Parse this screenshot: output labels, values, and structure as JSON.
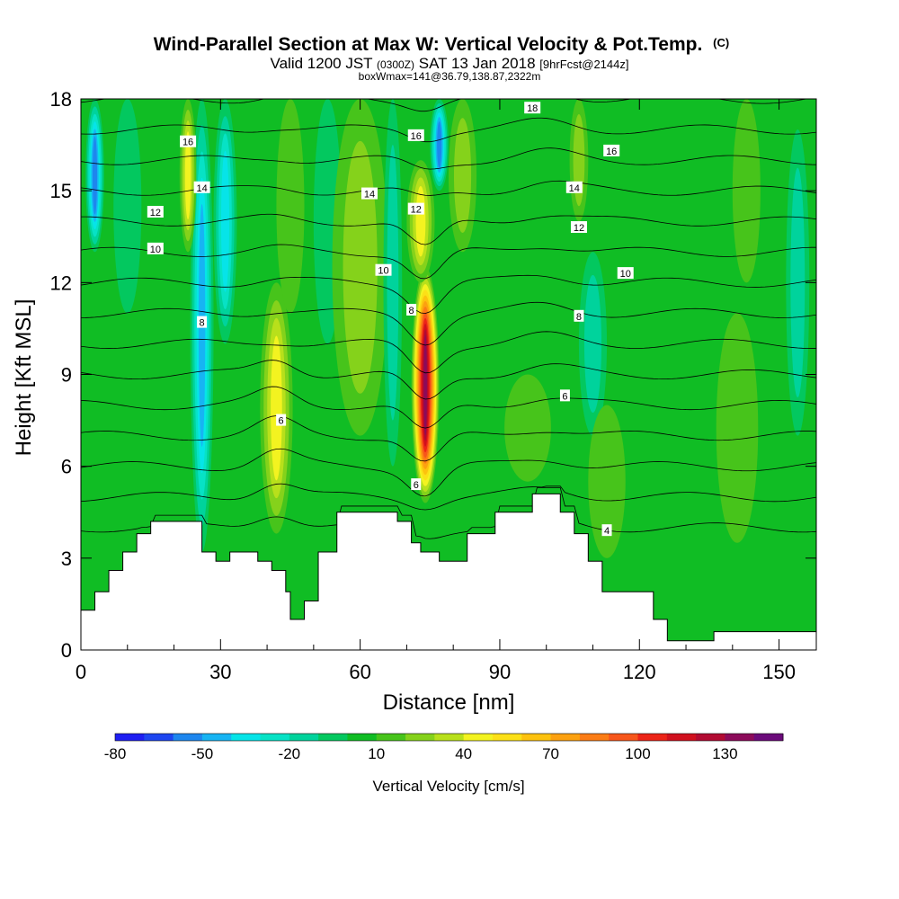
{
  "chart_data": {
    "type": "heatmap",
    "title": "Wind-Parallel Section at Max W: Vertical Velocity & Pot.Temp.",
    "title_mark": "(C)",
    "subtitle_parts": [
      "Valid 1200 JST",
      "(0300Z)",
      "SAT 13 Jan 2018",
      "[9hrFcst@2144z]"
    ],
    "subtitle2": "boxWmax=141@36.79,138.87,2322m",
    "xlabel": "Distance [nm]",
    "ylabel": "Height [Kft MSL]",
    "xlim": [
      0,
      158
    ],
    "ylim": [
      0,
      18
    ],
    "xticks": [
      0,
      30,
      60,
      90,
      120,
      150
    ],
    "yticks": [
      0,
      3,
      6,
      9,
      12,
      15,
      18
    ],
    "colorbar": {
      "label": "Vertical Velocity [cm/s]",
      "tick_labels": [
        "-80",
        "-50",
        "-20",
        "10",
        "40",
        "70",
        "100",
        "130"
      ],
      "bins": [
        -80,
        -70,
        -60,
        -50,
        -40,
        -30,
        -20,
        -10,
        0,
        10,
        20,
        30,
        40,
        50,
        60,
        70,
        80,
        90,
        100,
        110,
        120,
        130,
        140,
        150
      ],
      "colors": [
        "#1f1ff2",
        "#1e46f0",
        "#1e86ee",
        "#17b4f3",
        "#06e4e8",
        "#07e2c5",
        "#00d39c",
        "#03c85f",
        "#10bd24",
        "#47c41b",
        "#85d21b",
        "#b8e01b",
        "#f3f320",
        "#fce017",
        "#fdc20e",
        "#fca110",
        "#fb7c15",
        "#f7561b",
        "#ec2418",
        "#d0101e",
        "#b20a32",
        "#8c0a5a",
        "#6b0a7a"
      ]
    },
    "velocity_features": [
      {
        "x": 3,
        "half_width": 2.0,
        "zmin": 13,
        "zmax": 18,
        "w": -55
      },
      {
        "x": 10,
        "half_width": 3.0,
        "zmin": 11,
        "zmax": 18,
        "w": -10
      },
      {
        "x": 26,
        "half_width": 2.5,
        "zmin": 3.2,
        "zmax": 18,
        "w": -45
      },
      {
        "x": 31,
        "half_width": 2.5,
        "zmin": 10,
        "zmax": 18,
        "w": -40
      },
      {
        "x": 23,
        "half_width": 1.8,
        "zmin": 13,
        "zmax": 18,
        "w": 45
      },
      {
        "x": 42,
        "half_width": 3.5,
        "zmin": 3.8,
        "zmax": 12,
        "w": 50
      },
      {
        "x": 45,
        "half_width": 3.0,
        "zmin": 11,
        "zmax": 18,
        "w": 22
      },
      {
        "x": 53,
        "half_width": 3.0,
        "zmin": 10,
        "zmax": 18,
        "w": -12
      },
      {
        "x": 60,
        "half_width": 6.0,
        "zmin": 7,
        "zmax": 18,
        "w": 25
      },
      {
        "x": 67,
        "half_width": 2.0,
        "zmin": 6,
        "zmax": 18,
        "w": -18
      },
      {
        "x": 74,
        "half_width": 3.0,
        "zmin": 4.8,
        "zmax": 12.5,
        "w": 135
      },
      {
        "x": 73,
        "half_width": 3.0,
        "zmin": 12,
        "zmax": 16,
        "w": 45
      },
      {
        "x": 77,
        "half_width": 2.0,
        "zmin": 15,
        "zmax": 18,
        "w": -55
      },
      {
        "x": 82,
        "half_width": 3.0,
        "zmin": 13,
        "zmax": 18,
        "w": 28
      },
      {
        "x": 96,
        "half_width": 5.0,
        "zmin": 5.5,
        "zmax": 9,
        "w": 20
      },
      {
        "x": 110,
        "half_width": 3.0,
        "zmin": 7,
        "zmax": 13,
        "w": -22
      },
      {
        "x": 107,
        "half_width": 2.0,
        "zmin": 14,
        "zmax": 18,
        "w": 25
      },
      {
        "x": 113,
        "half_width": 4.0,
        "zmin": 3,
        "zmax": 8,
        "w": 22
      },
      {
        "x": 141,
        "half_width": 4.5,
        "zmin": 3.5,
        "zmax": 11,
        "w": 18
      },
      {
        "x": 143,
        "half_width": 3.0,
        "zmin": 12,
        "zmax": 18,
        "w": 18
      },
      {
        "x": 154,
        "half_width": 2.5,
        "zmin": 7,
        "zmax": 17,
        "w": -20
      }
    ],
    "terrain_profile": [
      [
        0,
        1.3
      ],
      [
        3,
        1.3
      ],
      [
        3,
        1.9
      ],
      [
        6,
        1.9
      ],
      [
        6,
        2.6
      ],
      [
        9,
        2.6
      ],
      [
        9,
        3.2
      ],
      [
        12,
        3.2
      ],
      [
        12,
        3.8
      ],
      [
        15,
        3.8
      ],
      [
        15,
        4.2
      ],
      [
        26,
        4.2
      ],
      [
        26,
        3.2
      ],
      [
        29,
        3.2
      ],
      [
        29,
        2.9
      ],
      [
        32,
        2.9
      ],
      [
        32,
        3.2
      ],
      [
        38,
        3.2
      ],
      [
        38,
        2.9
      ],
      [
        41,
        2.9
      ],
      [
        41,
        2.6
      ],
      [
        44,
        2.6
      ],
      [
        44,
        1.9
      ],
      [
        45,
        1.9
      ],
      [
        45,
        1.0
      ],
      [
        48,
        1.0
      ],
      [
        48,
        1.6
      ],
      [
        51,
        1.6
      ],
      [
        51,
        3.2
      ],
      [
        55,
        3.2
      ],
      [
        55,
        4.5
      ],
      [
        68,
        4.5
      ],
      [
        68,
        4.2
      ],
      [
        71,
        4.2
      ],
      [
        71,
        3.5
      ],
      [
        73,
        3.5
      ],
      [
        73,
        3.2
      ],
      [
        77,
        3.2
      ],
      [
        77,
        2.9
      ],
      [
        83,
        2.9
      ],
      [
        83,
        3.8
      ],
      [
        89,
        3.8
      ],
      [
        89,
        4.5
      ],
      [
        97,
        4.5
      ],
      [
        97,
        5.1
      ],
      [
        103,
        5.1
      ],
      [
        103,
        4.5
      ],
      [
        106,
        4.5
      ],
      [
        106,
        3.8
      ],
      [
        109,
        3.8
      ],
      [
        109,
        2.9
      ],
      [
        112,
        2.9
      ],
      [
        112,
        1.9
      ],
      [
        123,
        1.9
      ],
      [
        123,
        1.0
      ],
      [
        126,
        1.0
      ],
      [
        126,
        0.3
      ],
      [
        136,
        0.3
      ],
      [
        136,
        0.6
      ],
      [
        158,
        0.6
      ]
    ],
    "theta_contours": {
      "levels": [
        4,
        5,
        6,
        7,
        8,
        9,
        10,
        11,
        12,
        13,
        14,
        15,
        16,
        17,
        18
      ],
      "labels": [
        {
          "text": "16",
          "x": 23,
          "y": 16.6
        },
        {
          "text": "14",
          "x": 26,
          "y": 15.1
        },
        {
          "text": "12",
          "x": 16,
          "y": 14.3
        },
        {
          "text": "10",
          "x": 16,
          "y": 13.1
        },
        {
          "text": "8",
          "x": 26,
          "y": 10.7
        },
        {
          "text": "6",
          "x": 43,
          "y": 7.5
        },
        {
          "text": "14",
          "x": 62,
          "y": 14.9
        },
        {
          "text": "16",
          "x": 72,
          "y": 16.8
        },
        {
          "text": "12",
          "x": 72,
          "y": 14.4
        },
        {
          "text": "10",
          "x": 65,
          "y": 12.4
        },
        {
          "text": "8",
          "x": 71,
          "y": 11.1
        },
        {
          "text": "6",
          "x": 72,
          "y": 5.4
        },
        {
          "text": "18",
          "x": 97,
          "y": 17.7
        },
        {
          "text": "16",
          "x": 114,
          "y": 16.3
        },
        {
          "text": "14",
          "x": 106,
          "y": 15.1
        },
        {
          "text": "12",
          "x": 107,
          "y": 13.8
        },
        {
          "text": "10",
          "x": 117,
          "y": 12.3
        },
        {
          "text": "8",
          "x": 107,
          "y": 10.9
        },
        {
          "text": "6",
          "x": 104,
          "y": 8.3
        },
        {
          "text": "4",
          "x": 113,
          "y": 3.9
        }
      ]
    }
  }
}
